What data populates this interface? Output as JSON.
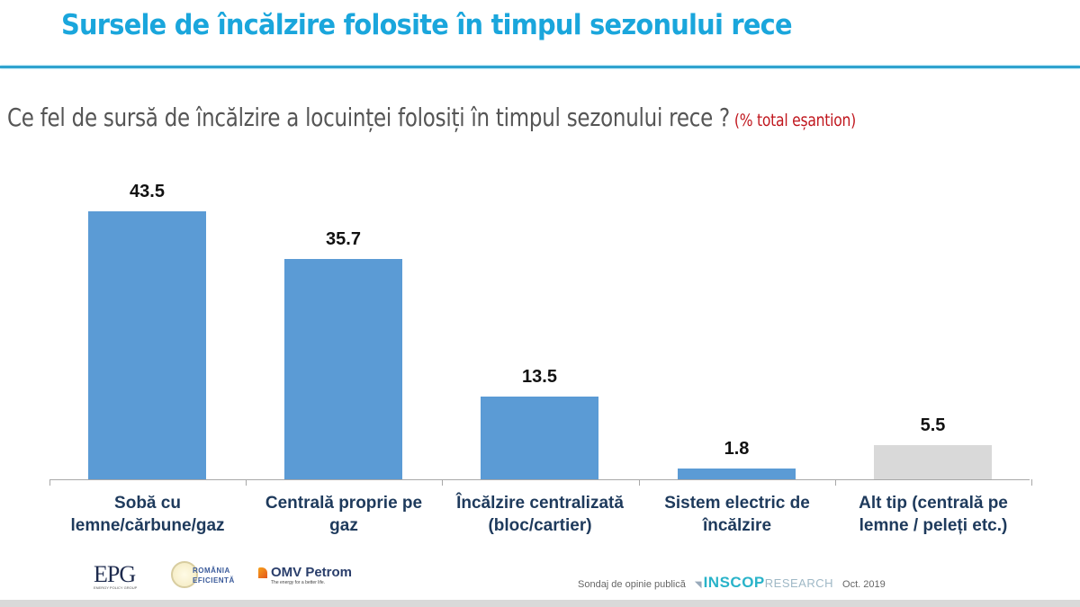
{
  "header": {
    "title": "Sursele de încălzire folosite în timpul sezonului rece",
    "question": "Ce fel de sursă de încălzire a locuinței folosiți în timpul sezonului rece ?",
    "note": "(% total eșantion)"
  },
  "colors": {
    "title": "#1aa6dc",
    "bar_primary": "#5b9bd5",
    "bar_other": "#d9d9d9",
    "note": "#c0161d"
  },
  "chart_data": {
    "type": "bar",
    "title": "Sursele de încălzire folosite în timpul sezonului rece",
    "subtitle": "Ce fel de sursă de încălzire a locuinței folosiți în timpul sezonului rece ? (% total eșantion)",
    "categories": [
      "Sobă cu lemne/cărbune/gaz",
      "Centrală proprie pe gaz",
      "Încălzire centralizată (bloc/cartier)",
      "Sistem electric de încălzire",
      "Alt tip (centrală pe lemne / peleți etc.)"
    ],
    "values": [
      43.5,
      35.7,
      13.5,
      1.8,
      5.5
    ],
    "value_labels": [
      "43.5",
      "35.7",
      "13.5",
      "1.8",
      "5.5"
    ],
    "category_lines": [
      [
        "Sobă cu",
        "lemne/cărbune/gaz"
      ],
      [
        "Centrală proprie pe",
        "gaz"
      ],
      [
        "Încălzire centralizată",
        "(bloc/cartier)"
      ],
      [
        "Sistem electric de",
        "încălzire"
      ],
      [
        "Alt tip (centrală pe",
        "lemne / peleți etc.)"
      ]
    ],
    "bar_colors": [
      "#5b9bd5",
      "#5b9bd5",
      "#5b9bd5",
      "#5b9bd5",
      "#d9d9d9"
    ],
    "xlabel": "",
    "ylabel": "",
    "ylim": [
      0,
      50
    ],
    "grid": false,
    "legend": "none",
    "data_labels": true
  },
  "footer": {
    "logos": {
      "epg": "EPG",
      "epg_sub": "ENERGY POLICY GROUP",
      "romania_1": "ROMÂNIA",
      "romania_2": "EFICIENTĂ",
      "omv": "OMV Petrom",
      "omv_tag": "The energy for a better life."
    },
    "sondaj": "Sondaj de opinie publică",
    "inscop": "INSCOP",
    "research": "RESEARCH",
    "date": "Oct. 2019"
  }
}
